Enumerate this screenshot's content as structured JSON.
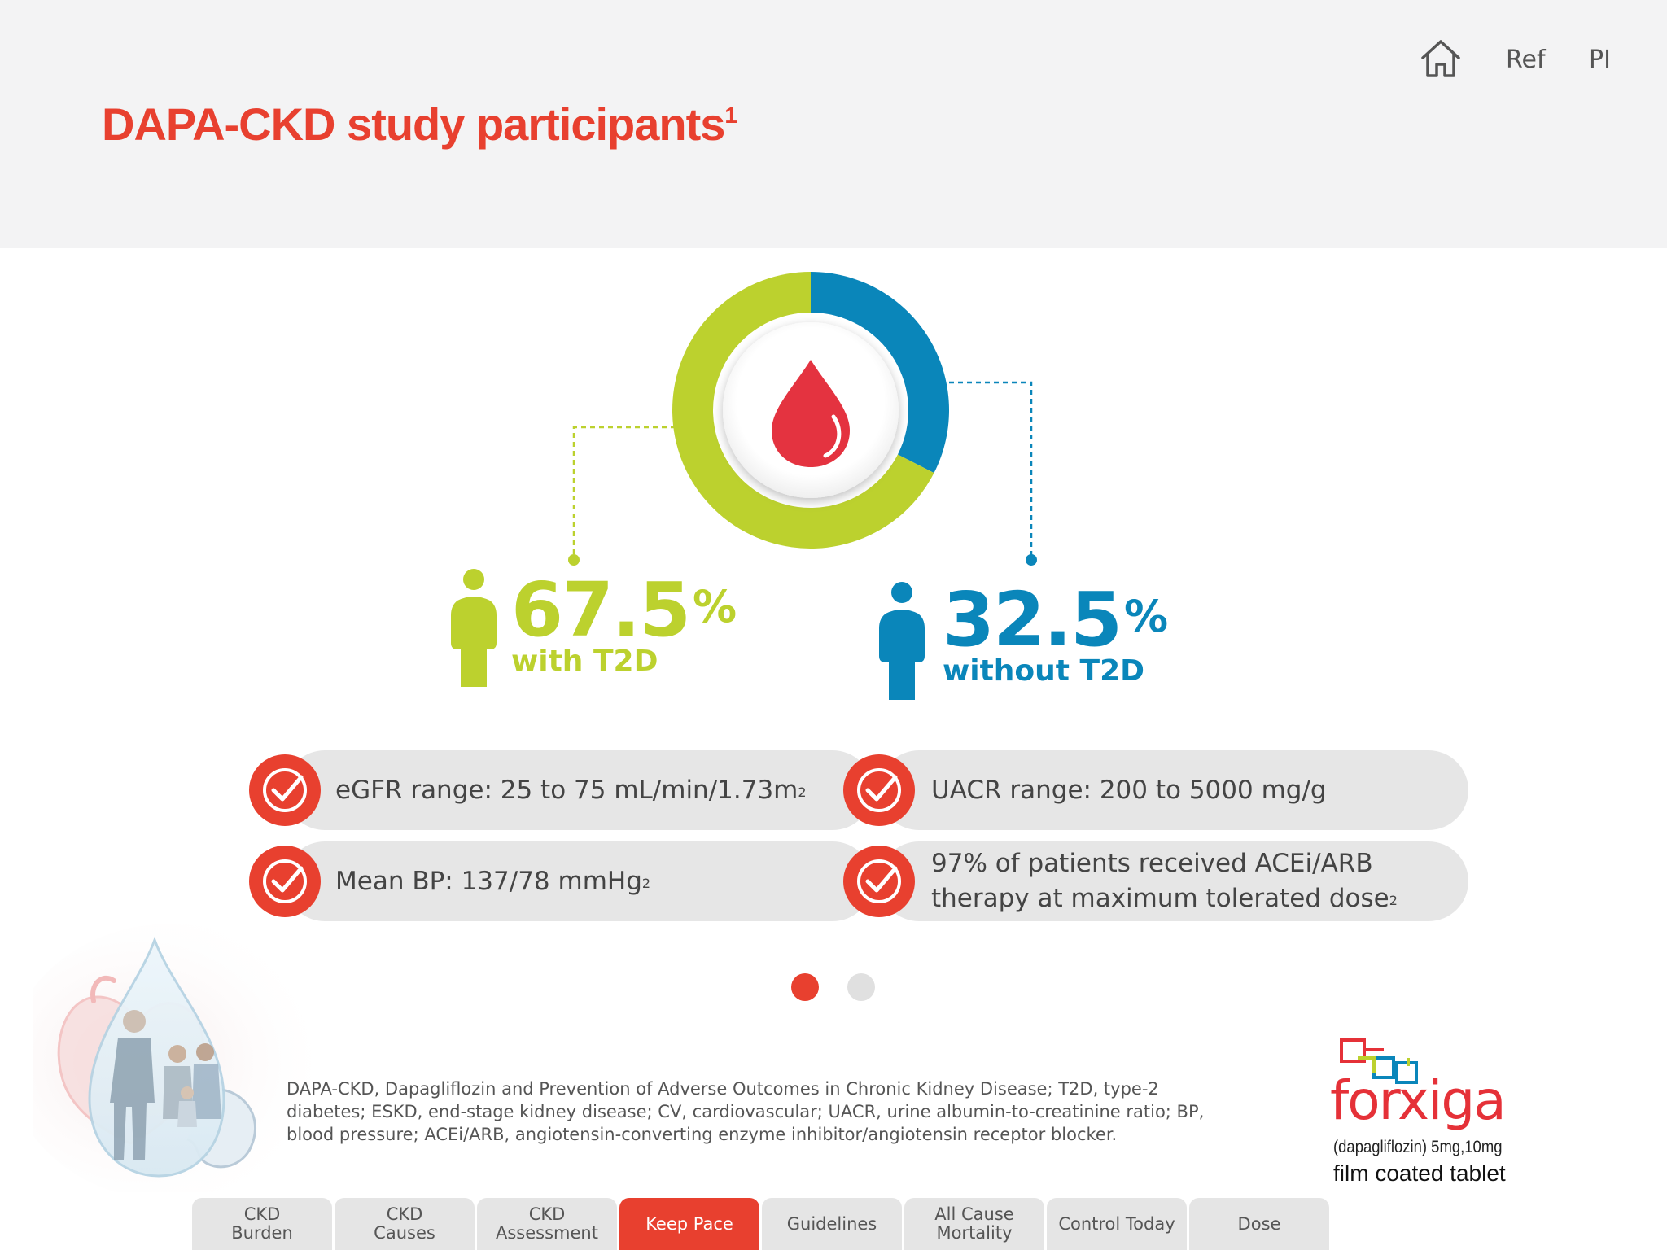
{
  "header": {
    "title": "DAPA-CKD study participants",
    "title_ref": "1",
    "nav": {
      "ref_label": "Ref",
      "pi_label": "PI",
      "home_icon": "home-icon"
    }
  },
  "chart_data": {
    "type": "pie",
    "categories": [
      "with T2D",
      "without T2D"
    ],
    "values": [
      67.5,
      32.5
    ],
    "colors": [
      "#bcd12e",
      "#0a86ba"
    ],
    "center_icon": "blood-drop-icon"
  },
  "stats": {
    "with_t2d": {
      "value": "67.5",
      "unit": "%",
      "label": "with T2D"
    },
    "without_t2d": {
      "value": "32.5",
      "unit": "%",
      "label": "without T2D"
    }
  },
  "criteria": {
    "egfr": {
      "text": "eGFR range: 25 to 75 mL/min/1.73m",
      "ref": "2"
    },
    "uacr": {
      "text": "UACR range: 200 to 5000 mg/g"
    },
    "bp": {
      "text": "Mean BP: 137/78 mmHg",
      "ref": "2"
    },
    "acei": {
      "line1": "97% of patients received ACEi/ARB",
      "line2": "therapy at maximum tolerated dose",
      "ref": "2"
    }
  },
  "pager": {
    "active_index": 0,
    "count": 2,
    "active_color": "#e8402f",
    "inactive_color": "#e0e0e0"
  },
  "footnote": "DAPA-CKD, Dapagliflozin and Prevention of Adverse Outcomes in Chronic Kidney Disease; T2D, type-2 diabetes; ESKD, end-stage kidney disease; CV, cardiovascular; UACR, urine albumin-to-creatinine ratio; BP, blood pressure; ACEi/ARB, angiotensin-converting enzyme inhibitor/angiotensin receptor blocker.",
  "brand": {
    "name": "forxiga",
    "generic": "(dapagliflozin) 5mg,10mg",
    "form": "film coated tablet"
  },
  "tabs": [
    {
      "label": "CKD\nBurden",
      "active": false
    },
    {
      "label": "CKD\nCauses",
      "active": false
    },
    {
      "label": "CKD\nAssessment",
      "active": false
    },
    {
      "label": "Keep Pace",
      "active": true
    },
    {
      "label": "Guidelines",
      "active": false
    },
    {
      "label": "All Cause\nMortality",
      "active": false
    },
    {
      "label": "Control Today",
      "active": false
    },
    {
      "label": "Dose",
      "active": false
    }
  ],
  "accent_color": "#e8402f"
}
